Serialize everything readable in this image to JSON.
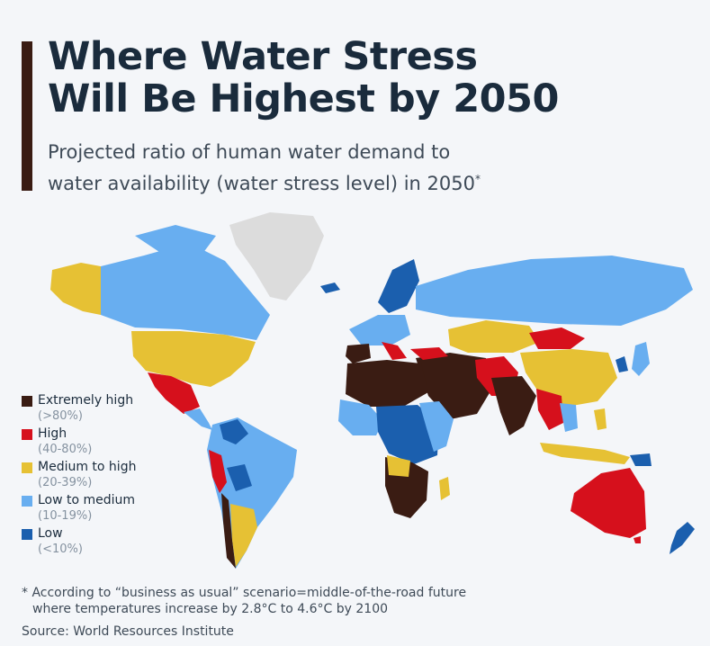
{
  "title": {
    "line1": "Where Water Stress",
    "line2": "Will Be Highest by 2050"
  },
  "subtitle": {
    "line1": "Projected ratio of human water demand to",
    "line2": "water availability (water stress level) in 2050",
    "marker": "*"
  },
  "legend": [
    {
      "label": "Extremely high",
      "range": "(>80%)",
      "color": "#3a1c13"
    },
    {
      "label": "High",
      "range": "(40-80%)",
      "color": "#d6101c"
    },
    {
      "label": "Medium to high",
      "range": "(20-39%)",
      "color": "#e6c134"
    },
    {
      "label": "Low to medium",
      "range": "(10-19%)",
      "color": "#68aef0"
    },
    {
      "label": "Low",
      "range": "(<10%)",
      "color": "#1b5fae"
    }
  ],
  "footnote": {
    "line1": "* According to “business as usual” scenario=middle-of-the-road future",
    "line2": "where temperatures increase by 2.8°C to 4.6°C by 2100"
  },
  "source": "Source: World Resources Institute",
  "colors": {
    "extremely_high": "#3a1c13",
    "high": "#d6101c",
    "medium_high": "#e6c134",
    "low_medium": "#68aef0",
    "low": "#1b5fae",
    "no_data": "#dcdcdc"
  }
}
